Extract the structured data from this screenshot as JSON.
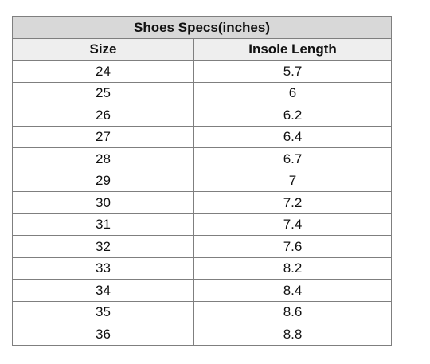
{
  "table": {
    "title": "Shoes Specs(inches)",
    "headers": {
      "size": "Size",
      "insole_length": "Insole Length"
    },
    "rows": [
      {
        "size": "24",
        "insole_length": "5.7"
      },
      {
        "size": "25",
        "insole_length": "6"
      },
      {
        "size": "26",
        "insole_length": "6.2"
      },
      {
        "size": "27",
        "insole_length": "6.4"
      },
      {
        "size": "28",
        "insole_length": "6.7"
      },
      {
        "size": "29",
        "insole_length": "7"
      },
      {
        "size": "30",
        "insole_length": "7.2"
      },
      {
        "size": "31",
        "insole_length": "7.4"
      },
      {
        "size": "32",
        "insole_length": "7.6"
      },
      {
        "size": "33",
        "insole_length": "8.2"
      },
      {
        "size": "34",
        "insole_length": "8.4"
      },
      {
        "size": "35",
        "insole_length": "8.6"
      },
      {
        "size": "36",
        "insole_length": "8.8"
      }
    ]
  },
  "colors": {
    "title_background": "#d8d8d8",
    "header_background": "#eeeeee",
    "border": "#7f7f7f"
  }
}
